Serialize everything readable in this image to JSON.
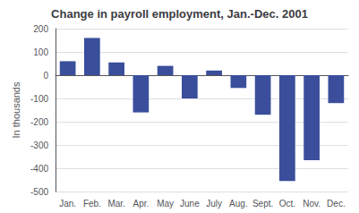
{
  "chart_data": {
    "type": "bar",
    "title": "Change in payroll employment, Jan.-Dec. 2001",
    "categories": [
      "Jan.",
      "Feb.",
      "Mar.",
      "Apr.",
      "May",
      "June",
      "July",
      "Aug.",
      "Sept.",
      "Oct.",
      "Nov.",
      "Dec."
    ],
    "values": [
      60,
      160,
      55,
      -160,
      40,
      -100,
      20,
      -55,
      -170,
      -455,
      -365,
      -120
    ],
    "color": "#3A4E9C",
    "ylabel": "In thousands",
    "ylim": [
      -500,
      200
    ],
    "yticks": [
      -500,
      -400,
      -300,
      -200,
      -100,
      0,
      100,
      200
    ],
    "grid": true
  }
}
